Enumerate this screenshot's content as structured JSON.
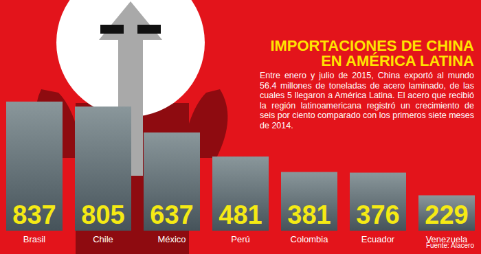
{
  "chart_data": {
    "type": "bar",
    "title": "IMPORTACIONES DE CHINA EN AMÉRICA LATINA",
    "subtitle": "Entre enero y julio de 2015, China exportó al mundo 56.4 millones de toneladas de acero laminado, de las cuales 5 llegaron a América Latina. El acero que recibió la región latinoamericana registró un crecimiento de seis por ciento comparado con los primeros siete meses de 2014.",
    "source": "Fuente: Alacero",
    "categories": [
      "Brasil",
      "Chile",
      "México",
      "Perú",
      "Colombia",
      "Ecuador",
      "Venezuela"
    ],
    "values": [
      837,
      805,
      637,
      481,
      381,
      376,
      229
    ],
    "color": "#8a979b",
    "data_labels": true,
    "tick_labels": "x",
    "grid": false
  }
}
